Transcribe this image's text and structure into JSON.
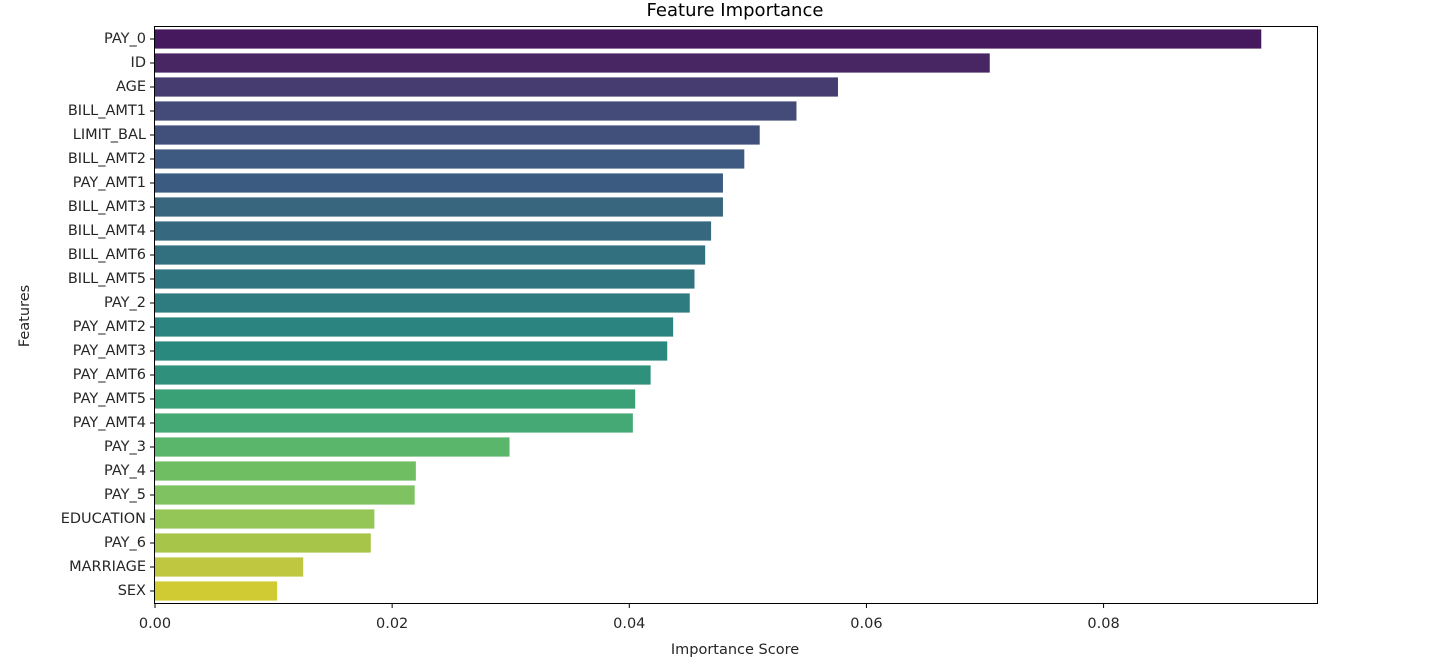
{
  "chart_data": {
    "type": "bar",
    "orientation": "horizontal",
    "title": "Feature Importance",
    "xlabel": "Importance Score",
    "ylabel": "Features",
    "xlim": [
      0,
      0.098
    ],
    "xticks": [
      0.0,
      0.02,
      0.04,
      0.06,
      0.08
    ],
    "xtick_labels": [
      "0.00",
      "0.02",
      "0.04",
      "0.06",
      "0.08"
    ],
    "grid": false,
    "colormap": "viridis",
    "categories": [
      "PAY_0",
      "ID",
      "AGE",
      "BILL_AMT1",
      "LIMIT_BAL",
      "BILL_AMT2",
      "PAY_AMT1",
      "BILL_AMT3",
      "BILL_AMT4",
      "BILL_AMT6",
      "BILL_AMT5",
      "PAY_2",
      "PAY_AMT2",
      "PAY_AMT3",
      "PAY_AMT6",
      "PAY_AMT5",
      "PAY_AMT4",
      "PAY_3",
      "PAY_4",
      "PAY_5",
      "EDUCATION",
      "PAY_6",
      "MARRIAGE",
      "SEX"
    ],
    "values": [
      0.0933,
      0.0704,
      0.0576,
      0.0541,
      0.051,
      0.0497,
      0.0479,
      0.0479,
      0.0469,
      0.0464,
      0.0455,
      0.0451,
      0.0437,
      0.0432,
      0.0418,
      0.0405,
      0.0403,
      0.0299,
      0.022,
      0.0219,
      0.0185,
      0.0182,
      0.0125,
      0.0103
    ],
    "colors": [
      "#46185d",
      "#472663",
      "#463c6f",
      "#444b78",
      "#414f7b",
      "#3e5a80",
      "#3b5c80",
      "#39667f",
      "#36697f",
      "#33707f",
      "#2f747f",
      "#2e7c80",
      "#2b847f",
      "#29897e",
      "#2f917b",
      "#3aa076",
      "#45a976",
      "#59b66a",
      "#70be62",
      "#7ec261",
      "#94c557",
      "#a7c549",
      "#bfc63f",
      "#d1cb33"
    ]
  }
}
